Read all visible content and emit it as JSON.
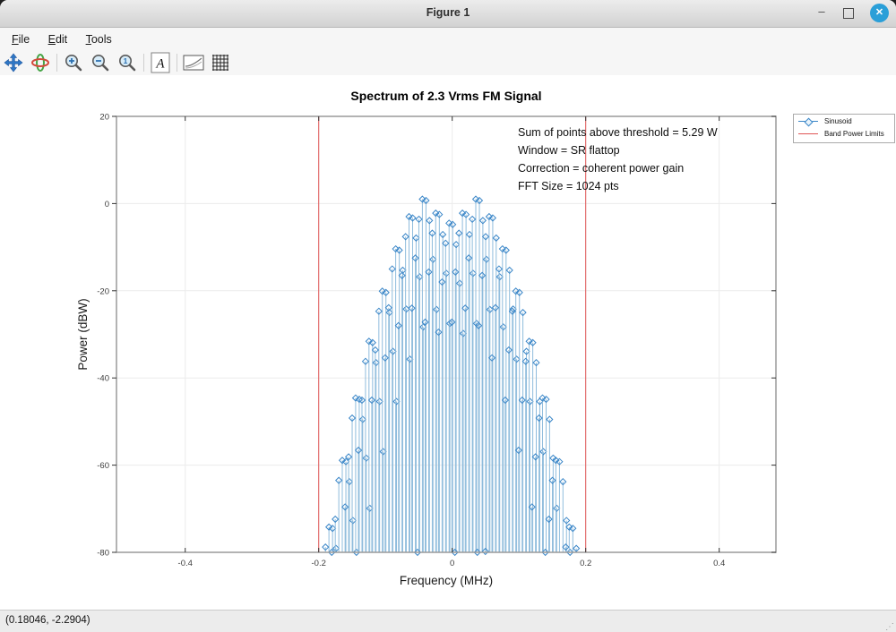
{
  "window": {
    "title": "Figure 1",
    "controls": {
      "minimize": "–",
      "close": "✕"
    }
  },
  "menu": {
    "items": [
      {
        "label": "File"
      },
      {
        "label": "Edit"
      },
      {
        "label": "Tools"
      }
    ]
  },
  "toolbar": {
    "icons": [
      "pan",
      "rotate",
      "zoom-in",
      "zoom-out",
      "zoom-original",
      "insert-text",
      "axes-config",
      "grid-toggle"
    ]
  },
  "statusbar": {
    "coordinates": "(0.18046, -2.2904)"
  },
  "chart_data": {
    "type": "stem",
    "title": "Spectrum of 2.3 Vrms FM Signal",
    "xlabel": "Frequency (MHz)",
    "ylabel": "Power (dBW)",
    "xlim": [
      -0.503,
      0.485
    ],
    "ylim": [
      -80,
      20
    ],
    "xticks": [
      -0.4,
      -0.2,
      0,
      0.2,
      0.4
    ],
    "yticks": [
      20,
      0,
      -20,
      -40,
      -60,
      -80
    ],
    "grid": true,
    "legend": {
      "position": "outside-top-right",
      "entries": [
        {
          "label": "Sinusoid",
          "color": "#3a86c8",
          "marker": "diamond"
        },
        {
          "label": "Band Power Limits",
          "color": "#e05555",
          "marker": "line"
        }
      ]
    },
    "annotation": {
      "lines": [
        "Sum of points above threshold = 5.29 W",
        "Window = SR flattop",
        "Correction = coherent power gain",
        "FFT Size = 1024 pts"
      ]
    },
    "band_limits_mhz": [
      -0.2,
      0.2
    ],
    "tones_freq_mhz_dbw": [
      [
        -0.182,
        -74.2
      ],
      [
        -0.162,
        -58.9
      ],
      [
        -0.142,
        -44.6
      ],
      [
        -0.122,
        -31.6
      ],
      [
        -0.102,
        -20.1
      ],
      [
        -0.082,
        -10.4
      ],
      [
        -0.062,
        -3.0
      ],
      [
        -0.042,
        1.0
      ],
      [
        -0.022,
        -2.2
      ],
      [
        -0.002,
        -4.5
      ],
      [
        0.018,
        -2.2
      ],
      [
        0.038,
        1.0
      ],
      [
        0.058,
        -3.0
      ],
      [
        0.078,
        -10.4
      ],
      [
        0.098,
        -20.1
      ],
      [
        0.118,
        -31.6
      ],
      [
        0.138,
        -44.6
      ],
      [
        0.158,
        -58.9
      ],
      [
        0.178,
        -74.2
      ]
    ],
    "window_skirt_offset_mhz_db_drop": [
      [
        0.0027,
        0
      ],
      [
        0.0079,
        4.6
      ],
      [
        0.0132,
        13.5
      ],
      [
        0.0185,
        25
      ]
    ],
    "extra_bins_freq_mhz_dbw": [
      [
        -0.052,
        -80
      ],
      [
        0.004,
        -80
      ],
      [
        0.0376,
        -80
      ],
      [
        0.0497,
        -79.8
      ]
    ],
    "colors": {
      "stem_line": "#8fbcdc",
      "marker_edge": "#3a86c8",
      "band_limit": "#e05555",
      "grid": "#ebebeb",
      "axis_box": "#9a9a9a",
      "tick": "#333333",
      "tick_label": "#3d3d3d"
    }
  }
}
